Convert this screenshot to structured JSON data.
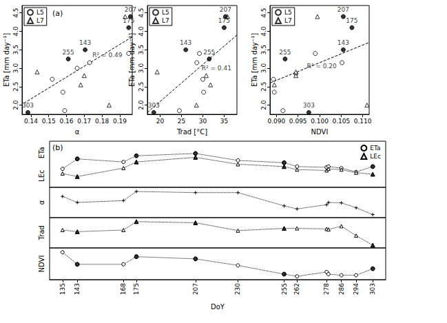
{
  "chart_data": [
    {
      "type": "scatter",
      "title": "(a)",
      "x_label": "α",
      "y_label": "ETa [mm day⁻¹]",
      "xlim": [
        0.135,
        0.197
      ],
      "xticks": [
        0.14,
        0.15,
        0.16,
        0.17,
        0.18,
        0.19
      ],
      "ylim": [
        1.75,
        4.7
      ],
      "yticks": [
        {
          "value": 2,
          "label": "2.0"
        },
        2.5,
        {
          "value": 3,
          "label": "3.0"
        },
        3.5,
        {
          "value": 4,
          "label": "4.0"
        },
        4.5
      ],
      "grid": false,
      "legend": "upper left",
      "series": [
        {
          "name": "L5",
          "marker": "circle",
          "color": "#000000",
          "x": [
            0.152,
            0.158,
            0.159,
            0.166,
            0.173,
            0.195
          ],
          "values": [
            2.7,
            2.35,
            1.85,
            3.0,
            3.15,
            3.4
          ]
        },
        {
          "name": "L7",
          "marker": "triangle",
          "color": "#000000",
          "x": [
            0.1435,
            0.168,
            0.17,
            0.184,
            0.193
          ],
          "values": [
            2.9,
            2.55,
            2.8,
            2.0,
            4.4
          ]
        },
        {
          "marker": "filled_circle",
          "color": "#000000",
          "x": [
            0.1383,
            0.161,
            0.1705,
            0.195,
            0.196
          ],
          "values": [
            1.8,
            3.25,
            3.5,
            4.1,
            4.4
          ],
          "labels": [
            "303",
            "255",
            "143",
            "175",
            "207"
          ]
        },
        {
          "type": "line",
          "line_style": "dashed",
          "color": "#000000",
          "x": [
            0.136,
            0.197
          ],
          "values": [
            2.05,
            3.85
          ]
        }
      ],
      "annotations": [
        {
          "text": "R² = 0.49",
          "x": 0.183,
          "y": 3.35
        }
      ]
    },
    {
      "type": "scatter",
      "x_label": "Trad [°C]",
      "y_label": "ETa [mm day⁻¹]",
      "xlim": [
        17,
        38
      ],
      "xticks": [
        20,
        25,
        30,
        35
      ],
      "ylim": [
        1.75,
        4.7
      ],
      "yticks": [
        {
          "value": 2,
          "label": "2.0"
        },
        2.5,
        {
          "value": 3,
          "label": "3.0"
        },
        3.5,
        {
          "value": 4,
          "label": "4.0"
        },
        4.5
      ],
      "grid": false,
      "legend": "upper left",
      "series": [
        {
          "name": "L5",
          "marker": "circle",
          "color": "#000000",
          "x": [
            24.5,
            28.6,
            29.2,
            30.2,
            30.0
          ],
          "values": [
            1.85,
            3.15,
            3.4,
            2.35,
            2.7
          ]
        },
        {
          "name": "L7",
          "marker": "triangle",
          "color": "#000000",
          "x": [
            19.3,
            28.5,
            30.8,
            31.8,
            35.8
          ],
          "values": [
            2.9,
            2.0,
            2.8,
            2.55,
            4.4
          ]
        },
        {
          "marker": "filled_circle",
          "color": "#000000",
          "x": [
            18.5,
            26.0,
            31.5,
            35.0,
            35.3
          ],
          "values": [
            1.8,
            3.5,
            3.25,
            4.1,
            4.4
          ],
          "labels": [
            "303",
            "143",
            "255",
            "175",
            "207"
          ]
        },
        {
          "type": "line",
          "line_style": "dashed",
          "color": "#000000",
          "x": [
            17,
            38
          ],
          "values": [
            1.8,
            3.9
          ]
        }
      ],
      "annotations": [
        {
          "text": "R² = 0.41",
          "x": 33.2,
          "y": 3.0
        }
      ]
    },
    {
      "type": "scatter",
      "x_label": "NDVI",
      "y_label": "ETa [mm day⁻¹]",
      "xlim": [
        0.0885,
        0.1115
      ],
      "xticks": [
        {
          "value": 0.09,
          "label": "0.090"
        },
        {
          "value": 0.095,
          "label": "0.095"
        },
        {
          "value": 0.1,
          "label": "0.100"
        },
        {
          "value": 0.105,
          "label": "0.105"
        },
        {
          "value": 0.11,
          "label": "0.110"
        }
      ],
      "ylim": [
        1.75,
        4.7
      ],
      "yticks": [
        {
          "value": 2,
          "label": "2.0"
        },
        2.5,
        {
          "value": 3,
          "label": "3.0"
        },
        3.5,
        {
          "value": 4,
          "label": "4.0"
        },
        4.5
      ],
      "grid": false,
      "legend": "upper left",
      "series": [
        {
          "name": "L5",
          "marker": "circle",
          "color": "#000000",
          "x": [
            0.0895,
            0.0893,
            0.0915,
            0.0945,
            0.099,
            0.1052
          ],
          "values": [
            2.35,
            2.7,
            1.85,
            2.85,
            3.4,
            3.15
          ]
        },
        {
          "name": "L7",
          "marker": "triangle",
          "color": "#000000",
          "x": [
            0.0895,
            0.0945,
            0.0945,
            0.0995,
            0.111
          ],
          "values": [
            2.55,
            2.9,
            2.8,
            4.4,
            2.0
          ]
        },
        {
          "marker": "filled_circle",
          "color": "#000000",
          "x": [
            0.092,
            0.0975,
            0.1055,
            0.1055,
            0.1075
          ],
          "values": [
            3.25,
            1.8,
            3.5,
            4.4,
            4.1
          ],
          "labels": [
            "255",
            "303",
            "143",
            "207",
            "175"
          ]
        },
        {
          "type": "line",
          "line_style": "dashed",
          "color": "#000000",
          "x": [
            0.0885,
            0.1115
          ],
          "values": [
            2.6,
            3.7
          ]
        }
      ],
      "annotations": [
        {
          "text": "R² = 0.20",
          "x": 0.1005,
          "y": 3.05
        }
      ]
    },
    {
      "type": "line",
      "title": "(b)",
      "x_label": "DoY",
      "x": [
        135,
        143,
        168,
        175,
        207,
        230,
        255,
        262,
        278,
        279,
        286,
        294,
        303
      ],
      "xlim": [
        128,
        310
      ],
      "xticks": [
        135,
        143,
        168,
        175,
        207,
        230,
        255,
        262,
        278,
        286,
        294,
        303
      ],
      "grid": false,
      "legend": "upper right",
      "tick_labels": "x",
      "panels": [
        {
          "y_label": [
            "ETa",
            "LEc"
          ],
          "ylim": [
            0,
            6
          ],
          "series": [
            {
              "name": "ETa",
              "marker": "circle",
              "line_style": "dotted",
              "color": "#000000",
              "values": [
                2.4,
                3.7,
                3.3,
                4.1,
                4.4,
                3.5,
                3.2,
                2.7,
                2.6,
                2.7,
                2.5,
                2.0,
                2.7
              ]
            },
            {
              "name": "LEc",
              "marker": "triangle",
              "line_style": "dotted",
              "color": "#000000",
              "values": [
                1.8,
                1.4,
                2.5,
                3.3,
                3.9,
                3.0,
                2.7,
                2.3,
                2.2,
                2.4,
                2.3,
                1.9,
                1.7
              ]
            },
            {
              "type": "scatter",
              "marker": "filled_circle",
              "color": "#000000",
              "x": [
                143,
                175,
                207,
                255,
                303
              ],
              "values": [
                3.7,
                4.1,
                4.4,
                3.2,
                2.7
              ]
            },
            {
              "type": "scatter",
              "marker": "filled_triangle",
              "color": "#000000",
              "x": [
                143,
                175,
                207,
                255,
                303
              ],
              "values": [
                1.4,
                3.3,
                3.9,
                2.7,
                1.7
              ]
            }
          ]
        },
        {
          "y_label": "α",
          "ylim": [
            0.13,
            0.21
          ],
          "series": [
            {
              "marker": "plus",
              "line_style": "dotted",
              "color": "#000000",
              "values": [
                0.186,
                0.17,
                0.175,
                0.199,
                0.196,
                0.196,
                0.161,
                0.153,
                0.164,
                0.17,
                0.169,
                0.156,
                0.138
              ]
            }
          ]
        },
        {
          "y_label": "Trad",
          "ylim": [
            17,
            39
          ],
          "series": [
            {
              "marker": "triangle",
              "line_style": "dotted",
              "color": "#000000",
              "values": [
                30.0,
                28.8,
                30.0,
                36.1,
                35.3,
                29.6,
                31.2,
                31.2,
                30.8,
                30.4,
                32.8,
                25.9,
                19.0
              ]
            },
            {
              "type": "scatter",
              "marker": "filled_triangle",
              "color": "#000000",
              "x": [
                143,
                175,
                207,
                255,
                303
              ],
              "values": [
                28.8,
                36.1,
                35.3,
                31.2,
                19.0
              ]
            }
          ]
        },
        {
          "y_label": "NDVI",
          "ylim": [
            0.087,
            0.116
          ],
          "series": [
            {
              "marker": "circle",
              "line_style": "dotted",
              "color": "#000000",
              "values": [
                0.112,
                0.101,
                0.101,
                0.108,
                0.106,
                0.1,
                0.092,
                0.09,
                0.094,
                0.092,
                0.091,
                0.091,
                0.097
              ]
            },
            {
              "type": "scatter",
              "marker": "filled_circle",
              "color": "#000000",
              "x": [
                143,
                175,
                207,
                255,
                303
              ],
              "values": [
                0.101,
                0.108,
                0.106,
                0.092,
                0.097
              ]
            }
          ]
        }
      ]
    }
  ]
}
